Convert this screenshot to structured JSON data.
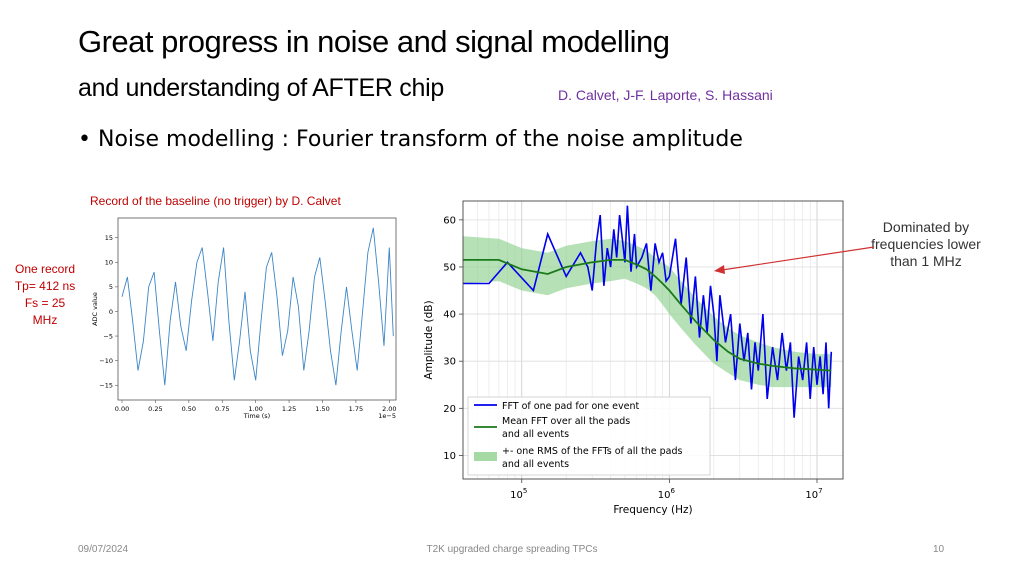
{
  "slide": {
    "title_line1": "Great progress in noise and signal modelling",
    "title_line2": "and understanding of AFTER chip",
    "authors": "D. Calvet, J-F. Laporte, S. Hassani",
    "bullet_symbol": "•",
    "bullet_text": "Noise modelling : Fourier transform of the noise amplitude",
    "baseline_caption": "Record of the baseline (no trigger) by D. Calvet",
    "record_note": {
      "line1": "One record",
      "line2": "Tp= 412 ns",
      "line3": "Fs = 25",
      "line4": "MHz"
    },
    "dominated_note": {
      "line1": "Dominated by",
      "line2": "frequencies lower",
      "line3": "than 1 MHz"
    },
    "footer": {
      "date": "09/07/2024",
      "center": "T2K upgraded charge spreading TPCs",
      "page": "10"
    },
    "colors": {
      "authors": "#7030a0",
      "red_notes": "#c00000",
      "fft_line": "#0000ee",
      "mean_line": "#1a7a1a",
      "rms_band": "#8fd18f",
      "baseline_line": "#3b86c6"
    }
  },
  "chart_data": [
    {
      "type": "line",
      "title": "",
      "xlabel": "Time (s)",
      "ylabel": "ADC value",
      "x_offset_label": "1e−5",
      "xlim": [
        -0.03,
        2.05
      ],
      "ylim": [
        -18,
        19
      ],
      "x_ticks": [
        "0.00",
        "0.25",
        "0.50",
        "0.75",
        "1.00",
        "1.25",
        "1.50",
        "1.75",
        "2.00"
      ],
      "y_ticks": [
        "15",
        "10",
        "5",
        "0",
        "−5",
        "−10",
        "−15"
      ],
      "y_tick_values": [
        15,
        10,
        5,
        0,
        -5,
        -10,
        -15
      ],
      "series": [
        {
          "x": [
            0.0,
            0.04,
            0.08,
            0.12,
            0.16,
            0.2,
            0.24,
            0.28,
            0.32,
            0.36,
            0.4,
            0.44,
            0.48,
            0.52,
            0.56,
            0.6,
            0.64,
            0.68,
            0.72,
            0.76,
            0.8,
            0.84,
            0.88,
            0.92,
            0.96,
            1.0,
            1.04,
            1.08,
            1.12,
            1.16,
            1.2,
            1.24,
            1.28,
            1.32,
            1.36,
            1.4,
            1.44,
            1.48,
            1.52,
            1.56,
            1.6,
            1.64,
            1.68,
            1.72,
            1.76,
            1.8,
            1.84,
            1.88,
            1.92,
            1.96,
            2.0,
            2.03
          ],
          "values": [
            3,
            7,
            -2,
            -12,
            -6,
            5,
            8,
            -4,
            -15,
            -2,
            6,
            -3,
            -8,
            2,
            10,
            13,
            4,
            -6,
            6,
            13,
            -2,
            -14,
            -6,
            4,
            -8,
            -14,
            -2,
            9,
            12,
            3,
            -9,
            -4,
            7,
            1,
            -12,
            -4,
            7,
            11,
            2,
            -8,
            -15,
            -4,
            5,
            -4,
            -12,
            0,
            12,
            17,
            6,
            -7,
            13,
            -5
          ]
        }
      ]
    },
    {
      "type": "line",
      "title": "",
      "xlabel": "Frequency (Hz)",
      "ylabel": "Amplitude (dB)",
      "x_scale": "log",
      "xlim": [
        40000,
        15000000
      ],
      "ylim": [
        5,
        64
      ],
      "y_ticks": [
        "10",
        "20",
        "30",
        "40",
        "50",
        "60"
      ],
      "y_tick_values": [
        10,
        20,
        30,
        40,
        50,
        60
      ],
      "x_ticks": [
        {
          "value": 100000,
          "base": "10",
          "exp": "5"
        },
        {
          "value": 1000000,
          "base": "10",
          "exp": "6"
        },
        {
          "value": 10000000,
          "base": "10",
          "exp": "7"
        }
      ],
      "grid": true,
      "legend_position": "lower-left",
      "series": [
        {
          "name": "FFT of one pad for one event",
          "color": "#0000ee",
          "x": [
            40000,
            60000,
            80000,
            120000,
            150000,
            200000,
            250000,
            280000,
            300000,
            320000,
            340000,
            360000,
            380000,
            400000,
            420000,
            440000,
            460000,
            480000,
            500000,
            520000,
            550000,
            580000,
            600000,
            650000,
            700000,
            750000,
            800000,
            850000,
            900000,
            950000,
            1000000,
            1100000,
            1200000,
            1300000,
            1400000,
            1500000,
            1600000,
            1700000,
            1800000,
            1900000,
            2000000,
            2100000,
            2200000,
            2400000,
            2600000,
            2800000,
            3000000,
            3200000,
            3400000,
            3600000,
            3800000,
            4000000,
            4300000,
            4600000,
            5000000,
            5400000,
            5800000,
            6200000,
            6600000,
            7000000,
            7500000,
            8000000,
            8500000,
            9000000,
            9500000,
            10000000,
            10500000,
            11000000,
            11500000,
            12000000,
            12500000
          ],
          "values": [
            46.5,
            46.5,
            51,
            45,
            57,
            48,
            53,
            50,
            45,
            55,
            61,
            46,
            54,
            50,
            58,
            52,
            61,
            56,
            51,
            63,
            49,
            57,
            50,
            52,
            55,
            45,
            55,
            51,
            53,
            47,
            48,
            56,
            42,
            52,
            38,
            48,
            35,
            44,
            36,
            46,
            40,
            30,
            44,
            34,
            40,
            26,
            38,
            30,
            36,
            24,
            34,
            28,
            40,
            22,
            33,
            26,
            36,
            28,
            34,
            18,
            31,
            26,
            34,
            22,
            33,
            25,
            31,
            23,
            34,
            20,
            32
          ]
        },
        {
          "name": "Mean FFT over all the pads and all events",
          "color": "#1a7a1a",
          "x": [
            40000,
            70000,
            100000,
            150000,
            200000,
            300000,
            400000,
            500000,
            600000,
            700000,
            800000,
            900000,
            1000000,
            1200000,
            1500000,
            2000000,
            2500000,
            3000000,
            4000000,
            5000000,
            7000000,
            10000000,
            12500000
          ],
          "values": [
            51.5,
            51.5,
            49.5,
            48.5,
            50,
            51,
            51.5,
            51.5,
            50.5,
            49.5,
            48,
            46.5,
            45,
            42,
            38.5,
            34.5,
            32,
            30.5,
            29.5,
            29,
            28.5,
            28.2,
            28
          ]
        }
      ],
      "band": {
        "name": "+- one RMS of the FFTs of all the pads and all events",
        "color": "#8fd18f",
        "x": [
          40000,
          70000,
          100000,
          150000,
          200000,
          300000,
          400000,
          500000,
          600000,
          700000,
          800000,
          900000,
          1000000,
          1200000,
          1500000,
          2000000,
          2500000,
          3000000,
          4000000,
          5000000,
          7000000,
          10000000,
          12500000
        ],
        "upper": [
          56.5,
          56,
          54,
          53,
          54.5,
          55.5,
          56,
          55.5,
          54.5,
          53.5,
          52,
          51,
          50,
          47,
          43.5,
          39.5,
          37,
          35.5,
          34,
          33,
          32,
          31.5,
          31.5
        ],
        "lower": [
          46.5,
          47,
          45,
          44,
          45.5,
          46.5,
          47,
          47.5,
          46.5,
          45.5,
          44,
          42,
          40,
          37,
          33.5,
          29.5,
          27.5,
          26,
          25,
          24.5,
          24.5,
          24.5,
          24.5
        ]
      },
      "legend_entries": [
        {
          "line1": "FFT of one pad for one event",
          "line2": ""
        },
        {
          "line1": "Mean FFT over all the pads",
          "line2": "and all events"
        },
        {
          "line1": "+- one RMS of the FFTs of all the pads",
          "line2": "and all events"
        }
      ]
    }
  ]
}
